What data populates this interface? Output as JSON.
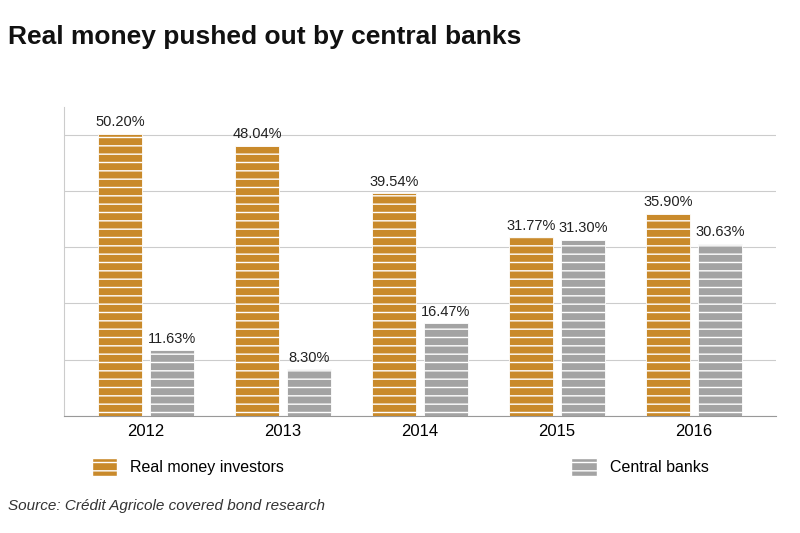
{
  "chart_data": {
    "type": "bar",
    "title": "Real money pushed out by central banks",
    "categories": [
      "2012",
      "2013",
      "2014",
      "2015",
      "2016"
    ],
    "series": [
      {
        "name": "Real money investors",
        "color": "#C98A2B",
        "values": [
          50.2,
          48.04,
          39.54,
          31.77,
          35.9
        ],
        "value_labels": [
          "50.20%",
          "48.04%",
          "39.54%",
          "31.77%",
          "35.90%"
        ]
      },
      {
        "name": "Central banks",
        "color": "#A3A3A3",
        "values": [
          11.63,
          8.3,
          16.47,
          31.3,
          30.63
        ],
        "value_labels": [
          "11.63%",
          "8.30%",
          "16.47%",
          "31.30%",
          "30.63%"
        ]
      }
    ],
    "ylim": [
      0,
      55
    ],
    "yticks": [
      0,
      10,
      20,
      30,
      40,
      50
    ],
    "grid": true,
    "data_labels": true,
    "tick_labels": "x",
    "legend": "lower center",
    "source": "Source: Crédit Agricole covered bond research"
  }
}
